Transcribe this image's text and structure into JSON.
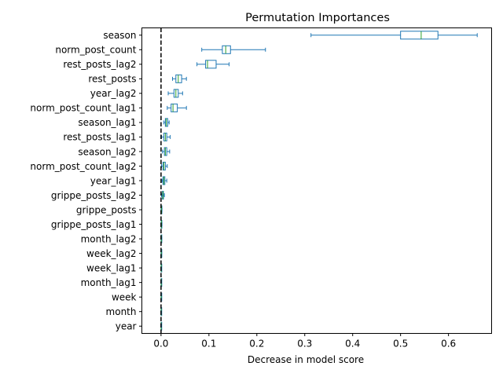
{
  "chart_data": {
    "type": "boxplot",
    "orientation": "horizontal",
    "title": "Permutation Importances",
    "xlabel": "Decrease in model score",
    "ylabel": "",
    "xlim": [
      -0.04,
      0.69
    ],
    "xticks": [
      0.0,
      0.1,
      0.2,
      0.3,
      0.4,
      0.5,
      0.6
    ],
    "xtick_labels": [
      "0.0",
      "0.1",
      "0.2",
      "0.3",
      "0.4",
      "0.5",
      "0.6"
    ],
    "grid": false,
    "box_color": "#1f77b4",
    "median_color": "#2ca02c",
    "reference_line": {
      "x": 0.0,
      "style": "dashed",
      "color": "#000000"
    },
    "categories": [
      {
        "name": "season",
        "whisker_low": 0.313,
        "q1": 0.5,
        "median": 0.543,
        "q3": 0.578,
        "whisker_high": 0.66
      },
      {
        "name": "norm_post_count",
        "whisker_low": 0.085,
        "q1": 0.128,
        "median": 0.135,
        "q3": 0.145,
        "whisker_high": 0.218
      },
      {
        "name": "rest_posts_lag2",
        "whisker_low": 0.075,
        "q1": 0.093,
        "median": 0.097,
        "q3": 0.115,
        "whisker_high": 0.142
      },
      {
        "name": "rest_posts",
        "whisker_low": 0.024,
        "q1": 0.031,
        "median": 0.036,
        "q3": 0.043,
        "whisker_high": 0.053
      },
      {
        "name": "year_lag2",
        "whisker_low": 0.015,
        "q1": 0.027,
        "median": 0.031,
        "q3": 0.036,
        "whisker_high": 0.045
      },
      {
        "name": "norm_post_count_lag1",
        "whisker_low": 0.013,
        "q1": 0.021,
        "median": 0.025,
        "q3": 0.034,
        "whisker_high": 0.053
      },
      {
        "name": "season_lag1",
        "whisker_low": 0.006,
        "q1": 0.009,
        "median": 0.011,
        "q3": 0.014,
        "whisker_high": 0.017
      },
      {
        "name": "rest_posts_lag1",
        "whisker_low": 0.001,
        "q1": 0.006,
        "median": 0.009,
        "q3": 0.012,
        "whisker_high": 0.019
      },
      {
        "name": "season_lag2",
        "whisker_low": 0.003,
        "q1": 0.007,
        "median": 0.009,
        "q3": 0.012,
        "whisker_high": 0.018
      },
      {
        "name": "norm_post_count_lag2",
        "whisker_low": 0.001,
        "q1": 0.004,
        "median": 0.006,
        "q3": 0.009,
        "whisker_high": 0.013
      },
      {
        "name": "year_lag1",
        "whisker_low": 0.002,
        "q1": 0.004,
        "median": 0.006,
        "q3": 0.008,
        "whisker_high": 0.012
      },
      {
        "name": "grippe_posts_lag2",
        "whisker_low": 0.001,
        "q1": 0.003,
        "median": 0.004,
        "q3": 0.005,
        "whisker_high": 0.007
      },
      {
        "name": "grippe_posts",
        "whisker_low": 0.0,
        "q1": 0.0005,
        "median": 0.001,
        "q3": 0.0015,
        "whisker_high": 0.002
      },
      {
        "name": "grippe_posts_lag1",
        "whisker_low": 0.0,
        "q1": 0.0004,
        "median": 0.0008,
        "q3": 0.0012,
        "whisker_high": 0.002
      },
      {
        "name": "month_lag2",
        "whisker_low": 0.0,
        "q1": 0.0003,
        "median": 0.0006,
        "q3": 0.001,
        "whisker_high": 0.0015
      },
      {
        "name": "week_lag2",
        "whisker_low": 0.0,
        "q1": 0.0003,
        "median": 0.0005,
        "q3": 0.0008,
        "whisker_high": 0.0012
      },
      {
        "name": "week_lag1",
        "whisker_low": 0.0,
        "q1": 0.0002,
        "median": 0.0004,
        "q3": 0.0007,
        "whisker_high": 0.001
      },
      {
        "name": "month_lag1",
        "whisker_low": 0.0,
        "q1": 0.0002,
        "median": 0.0004,
        "q3": 0.0007,
        "whisker_high": 0.001
      },
      {
        "name": "week",
        "whisker_low": 0.0,
        "q1": 0.0002,
        "median": 0.0003,
        "q3": 0.0005,
        "whisker_high": 0.0008
      },
      {
        "name": "month",
        "whisker_low": 0.0,
        "q1": 0.0001,
        "median": 0.0003,
        "q3": 0.0005,
        "whisker_high": 0.0008
      },
      {
        "name": "year",
        "whisker_low": 0.0,
        "q1": 0.0001,
        "median": 0.0002,
        "q3": 0.0004,
        "whisker_high": 0.0006
      }
    ]
  }
}
